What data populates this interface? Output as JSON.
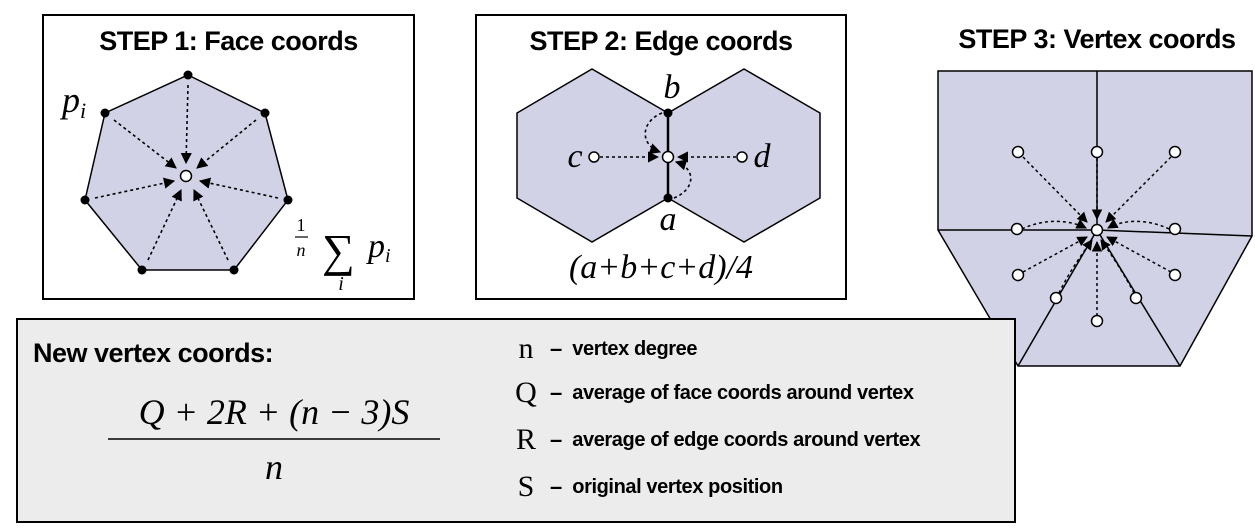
{
  "step1": {
    "title": "STEP 1: Face coords",
    "vertex_label": "p",
    "vertex_label_sub": "i",
    "formula": {
      "numerator": "1",
      "denominator": "n",
      "sum_symbol": "∑",
      "sum_index": "i",
      "term": "p",
      "term_sub": "i"
    }
  },
  "step2": {
    "title": "STEP 2: Edge coords",
    "labels": {
      "a": "a",
      "b": "b",
      "c": "c",
      "d": "d"
    },
    "formula": "(a+b+c+d)/4"
  },
  "step3": {
    "title": "STEP 3: Vertex coords"
  },
  "summary": {
    "title": "New vertex coords:",
    "formula": {
      "numerator": "Q + 2R + (n − 3)S",
      "denominator": "n"
    },
    "legend": [
      {
        "symbol": "n",
        "dash": "–",
        "desc": "vertex degree"
      },
      {
        "symbol": "Q",
        "dash": "–",
        "desc": "average of face coords around vertex"
      },
      {
        "symbol": "R",
        "dash": "–",
        "desc": "average of edge coords around vertex"
      },
      {
        "symbol": "S",
        "dash": "–",
        "desc": "original vertex position"
      }
    ]
  },
  "colors": {
    "face_fill": "#d2d2e6",
    "summary_bg": "#ececec",
    "stroke": "#000000"
  }
}
